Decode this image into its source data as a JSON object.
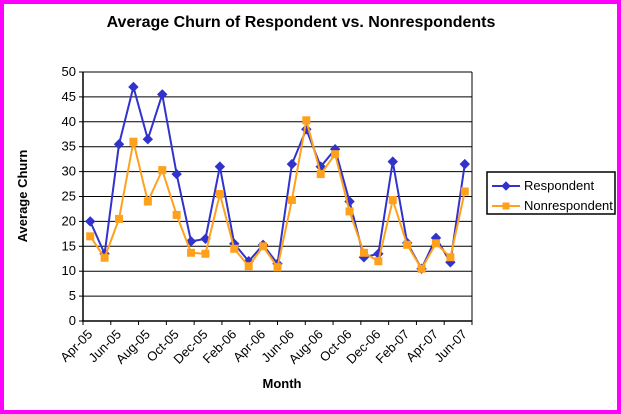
{
  "frame": {
    "border_color": "#FF00FF",
    "background_color": "#FFFFFF"
  },
  "chart_data": {
    "type": "line",
    "title": "Average Churn of Respondent vs. Nonrespondents",
    "xlabel": "Month",
    "ylabel": "Average Churn",
    "ylim": [
      0,
      50
    ],
    "yticks": [
      0,
      5,
      10,
      15,
      20,
      25,
      30,
      35,
      40,
      45,
      50
    ],
    "grid": "horizontal",
    "gridline_color": "#000000",
    "legend_position": "right",
    "months": [
      "Apr-05",
      "May-05",
      "Jun-05",
      "Jul-05",
      "Aug-05",
      "Sep-05",
      "Oct-05",
      "Nov-05",
      "Dec-05",
      "Jan-06",
      "Feb-06",
      "Mar-06",
      "Apr-06",
      "May-06",
      "Jun-06",
      "Jul-06",
      "Aug-06",
      "Sep-06",
      "Oct-06",
      "Nov-06",
      "Dec-06",
      "Jan-07",
      "Feb-07",
      "Mar-07",
      "Apr-07",
      "May-07",
      "Jun-07"
    ],
    "x_tick_labels": [
      "Apr-05",
      "Jun-05",
      "Aug-05",
      "Oct-05",
      "Dec-05",
      "Feb-06",
      "Apr-06",
      "Jun-06",
      "Aug-06",
      "Oct-06",
      "Dec-06",
      "Feb-07",
      "Apr-07",
      "Jun-07"
    ],
    "series": [
      {
        "name": "Respondent",
        "color": "#3232CC",
        "marker": "diamond",
        "values": [
          20,
          13.5,
          35.5,
          47,
          36.5,
          45.5,
          29.5,
          16,
          16.5,
          31,
          15.5,
          12,
          15.3,
          11.5,
          31.5,
          38.5,
          31,
          34.5,
          24,
          12.8,
          13.5,
          32,
          15.7,
          10.5,
          16.7,
          11.8,
          31.5
        ]
      },
      {
        "name": "Nonrespondent",
        "color": "#FFA11C",
        "marker": "square",
        "values": [
          17,
          12.7,
          20.5,
          36,
          24,
          30.3,
          21.3,
          13.7,
          13.5,
          25.5,
          14.5,
          11,
          15,
          10.8,
          24.3,
          40.3,
          29.5,
          33.5,
          22,
          13.7,
          12,
          24.3,
          15.3,
          10.5,
          15.6,
          12.8,
          26
        ]
      }
    ]
  }
}
